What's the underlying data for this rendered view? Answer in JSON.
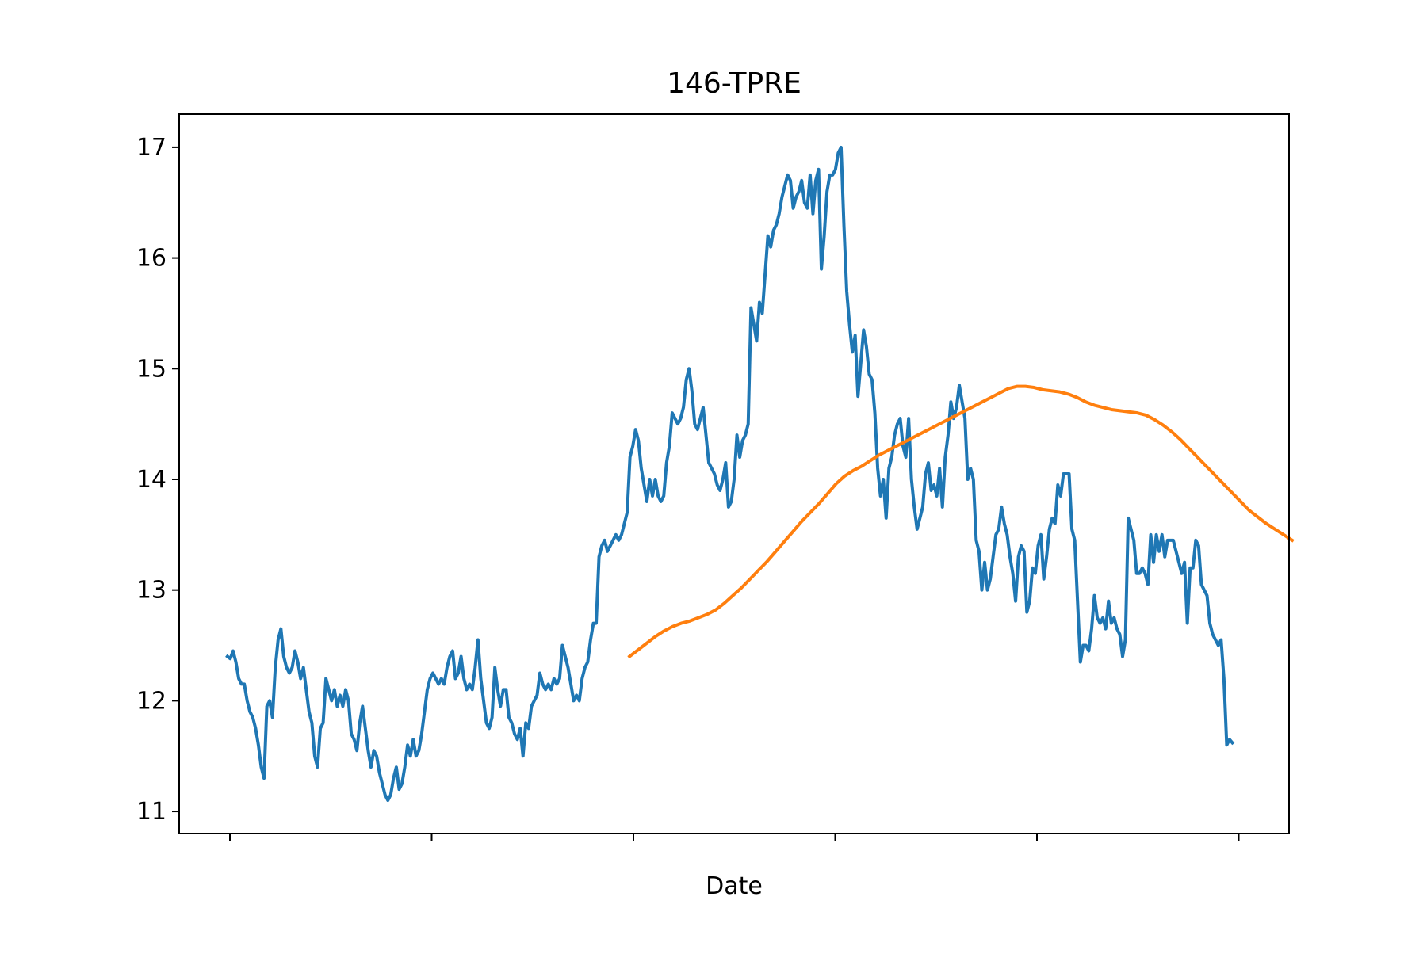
{
  "chart_data": {
    "type": "line",
    "title": "146-TPRE",
    "xlabel": "Date",
    "ylabel": "",
    "grid": false,
    "legend": "none",
    "x_tick_labels": [
      "",
      "",
      "",
      "",
      "",
      ""
    ],
    "yticks": [
      11,
      12,
      13,
      14,
      15,
      16,
      17
    ],
    "ylim": [
      10.8,
      17.3
    ],
    "xlim": [
      -12,
      264
    ],
    "colors": {
      "price": "#1f77b4",
      "moving_average": "#ff7f0e"
    },
    "series": [
      {
        "key": "price",
        "values": [
          12.4,
          12.38,
          12.45,
          12.35,
          12.2,
          12.15,
          12.15,
          12.0,
          11.9,
          11.85,
          11.75,
          11.6,
          11.4,
          11.3,
          11.95,
          12.0,
          11.85,
          12.3,
          12.55,
          12.65,
          12.4,
          12.3,
          12.25,
          12.3,
          12.45,
          12.35,
          12.2,
          12.3,
          12.1,
          11.9,
          11.8,
          11.5,
          11.4,
          11.75,
          11.8,
          12.2,
          12.1,
          12.0,
          12.1,
          11.95,
          12.05,
          11.95,
          12.1,
          12.0,
          11.7,
          11.65,
          11.55,
          11.8,
          11.95,
          11.75,
          11.55,
          11.4,
          11.55,
          11.5,
          11.35,
          11.25,
          11.15,
          11.1,
          11.15,
          11.3,
          11.4,
          11.2,
          11.25,
          11.4,
          11.6,
          11.5,
          11.65,
          11.5,
          11.55,
          11.7,
          11.9,
          12.1,
          12.2,
          12.25,
          12.2,
          12.15,
          12.2,
          12.15,
          12.3,
          12.4,
          12.45,
          12.2,
          12.25,
          12.4,
          12.2,
          12.1,
          12.15,
          12.1,
          12.3,
          12.55,
          12.2,
          12.0,
          11.8,
          11.75,
          11.85,
          12.3,
          12.1,
          11.95,
          12.1,
          12.1,
          11.85,
          11.8,
          11.7,
          11.65,
          11.75,
          11.5,
          11.8,
          11.75,
          11.95,
          12.0,
          12.05,
          12.25,
          12.15,
          12.1,
          12.15,
          12.1,
          12.2,
          12.15,
          12.2,
          12.5,
          12.4,
          12.3,
          12.15,
          12.0,
          12.05,
          12.0,
          12.2,
          12.3,
          12.35,
          12.55,
          12.7,
          12.7,
          13.3,
          13.4,
          13.45,
          13.35,
          13.4,
          13.45,
          13.5,
          13.45,
          13.5,
          13.6,
          13.7,
          14.2,
          14.3,
          14.45,
          14.35,
          14.1,
          13.95,
          13.8,
          14.0,
          13.85,
          14.0,
          13.85,
          13.8,
          13.85,
          14.15,
          14.3,
          14.6,
          14.55,
          14.5,
          14.55,
          14.65,
          14.9,
          15.0,
          14.8,
          14.5,
          14.45,
          14.55,
          14.65,
          14.4,
          14.15,
          14.1,
          14.05,
          13.95,
          13.9,
          14.0,
          14.15,
          13.75,
          13.8,
          14.0,
          14.4,
          14.2,
          14.35,
          14.4,
          14.5,
          15.55,
          15.4,
          15.25,
          15.6,
          15.5,
          15.85,
          16.2,
          16.1,
          16.25,
          16.3,
          16.4,
          16.55,
          16.65,
          16.75,
          16.7,
          16.45,
          16.55,
          16.6,
          16.7,
          16.5,
          16.45,
          16.75,
          16.4,
          16.7,
          16.8,
          15.9,
          16.2,
          16.6,
          16.75,
          16.75,
          16.8,
          16.95,
          17.0,
          16.3,
          15.7,
          15.4,
          15.15,
          15.3,
          14.75,
          15.05,
          15.35,
          15.2,
          14.95,
          14.9,
          14.6,
          14.1,
          13.85,
          14.0,
          13.65,
          14.1,
          14.2,
          14.4,
          14.5,
          14.55,
          14.3,
          14.2,
          14.55,
          14.0,
          13.75,
          13.55,
          13.65,
          13.75,
          14.05,
          14.15,
          13.9,
          13.95,
          13.85,
          14.1,
          13.75,
          14.2,
          14.4,
          14.7,
          14.55,
          14.65,
          14.85,
          14.7,
          14.55,
          14.0,
          14.1,
          14.0,
          13.45,
          13.35,
          13.0,
          13.25,
          13.0,
          13.1,
          13.3,
          13.5,
          13.55,
          13.75,
          13.6,
          13.5,
          13.3,
          13.15,
          12.9,
          13.3,
          13.4,
          13.35,
          12.8,
          12.9,
          13.2,
          13.15,
          13.4,
          13.5,
          13.1,
          13.3,
          13.55,
          13.65,
          13.6,
          13.95,
          13.85,
          14.05,
          14.05,
          14.05,
          13.55,
          13.45,
          12.9,
          12.35,
          12.5,
          12.5,
          12.45,
          12.65,
          12.95,
          12.75,
          12.7,
          12.75,
          12.65,
          12.9,
          12.7,
          12.75,
          12.65,
          12.6,
          12.4,
          12.55,
          13.65,
          13.55,
          13.45,
          13.15,
          13.15,
          13.2,
          13.15,
          13.05,
          13.5,
          13.25,
          13.5,
          13.35,
          13.5,
          13.3,
          13.45,
          13.45,
          13.45,
          13.35,
          13.25,
          13.15,
          13.25,
          12.7,
          13.2,
          13.2,
          13.45,
          13.4,
          13.05,
          13.0,
          12.95,
          12.7,
          12.6,
          12.55,
          12.5,
          12.55,
          12.2,
          11.6,
          11.65,
          11.62
        ],
        "x_start": 0,
        "x_step": 0.7
      },
      {
        "key": "moving_average",
        "values": [
          12.4,
          12.46,
          12.52,
          12.58,
          12.63,
          12.67,
          12.7,
          12.72,
          12.75,
          12.78,
          12.82,
          12.88,
          12.95,
          13.02,
          13.1,
          13.18,
          13.26,
          13.35,
          13.44,
          13.53,
          13.62,
          13.7,
          13.78,
          13.87,
          13.96,
          14.03,
          14.08,
          14.12,
          14.17,
          14.22,
          14.26,
          14.3,
          14.34,
          14.38,
          14.42,
          14.46,
          14.5,
          14.54,
          14.58,
          14.62,
          14.66,
          14.7,
          14.74,
          14.78,
          14.82,
          14.84,
          14.84,
          14.83,
          14.81,
          14.8,
          14.79,
          14.77,
          14.74,
          14.7,
          14.67,
          14.65,
          14.63,
          14.62,
          14.61,
          14.6,
          14.58,
          14.54,
          14.49,
          14.43,
          14.36,
          14.28,
          14.2,
          14.12,
          14.04,
          13.96,
          13.88,
          13.8,
          13.72,
          13.66,
          13.6,
          13.55,
          13.5,
          13.45
        ],
        "x_start": 100,
        "x_step": 2.14
      }
    ]
  }
}
